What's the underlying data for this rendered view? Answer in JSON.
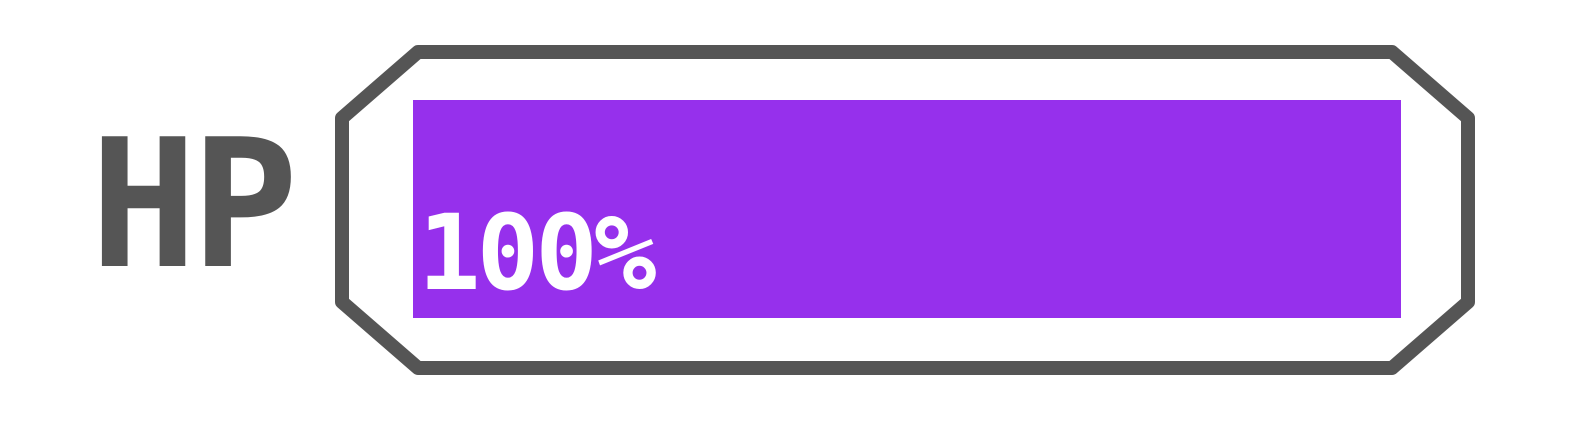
{
  "hud": {
    "stat_label": "HP",
    "value_text": "100%",
    "fill_fraction": 1.0
  },
  "colors": {
    "label": "#555555",
    "frame": "#555555",
    "fill": "#9630ec",
    "value_text": "#ffffff",
    "background": "#ffffff"
  }
}
